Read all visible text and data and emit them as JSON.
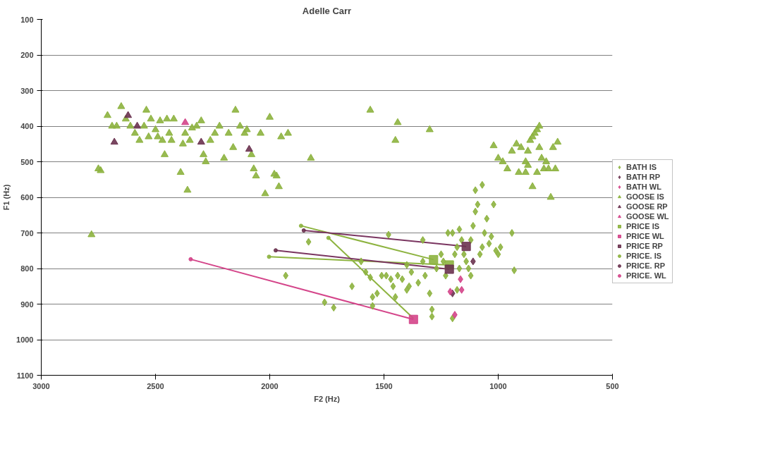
{
  "chart_data": {
    "type": "scatter",
    "title": "Adelle Carr",
    "xlabel": "F2 (Hz)",
    "ylabel": "F1 (Hz)",
    "xlim": [
      3000,
      500
    ],
    "xticks": [
      3000,
      2500,
      2000,
      1500,
      1000,
      500
    ],
    "ylim": [
      1100,
      100
    ],
    "yticks": [
      100,
      200,
      300,
      400,
      500,
      600,
      700,
      800,
      900,
      1000,
      1100
    ],
    "grid": "y",
    "legend": "right",
    "series": [
      {
        "type": "line",
        "color": "#8db33f",
        "x": [
          1371,
          1743
        ],
        "values": [
          940,
          714
        ]
      },
      {
        "type": "line",
        "color": "#8db33f",
        "x": [
          1214,
          2003
        ],
        "values": [
          790,
          767
        ]
      },
      {
        "type": "line",
        "color": "#8db33f",
        "x": [
          1283,
          1863
        ],
        "values": [
          775,
          680
        ]
      },
      {
        "type": "line",
        "color": "#7a3560",
        "x": [
          1140,
          1851
        ],
        "values": [
          738,
          693
        ]
      },
      {
        "type": "line",
        "color": "#7a3560",
        "x": [
          1214,
          1974
        ],
        "values": [
          802,
          749
        ]
      },
      {
        "type": "line",
        "color": "#d4458a",
        "x": [
          1371,
          2346
        ],
        "values": [
          943,
          774
        ]
      },
      {
        "name": "BATH IS",
        "color": "#8db33f",
        "marker": "diamond",
        "x": [
          1930,
          1830,
          1720,
          1760,
          1640,
          1600,
          1580,
          1560,
          1550,
          1530,
          1510,
          1490,
          1470,
          1460,
          1450,
          1440,
          1420,
          1400,
          1390,
          1380,
          1350,
          1330,
          1320,
          1300,
          1290,
          1290,
          1270,
          1250,
          1240,
          1230,
          1220,
          1200,
          1200,
          1190,
          1180,
          1170,
          1160,
          1150,
          1140,
          1130,
          1120,
          1110,
          1100,
          1090,
          1080,
          1070,
          1060,
          1050,
          1040,
          1030,
          1020,
          1010,
          1000,
          990,
          940,
          930,
          1070,
          1100,
          1480,
          1330,
          1550,
          1400,
          1170,
          1120,
          1180
        ],
        "values": [
          820,
          725,
          910,
          895,
          850,
          780,
          810,
          825,
          880,
          870,
          820,
          820,
          830,
          850,
          880,
          820,
          830,
          790,
          850,
          810,
          840,
          780,
          820,
          870,
          915,
          935,
          800,
          760,
          780,
          820,
          700,
          700,
          940,
          760,
          740,
          800,
          720,
          760,
          780,
          800,
          720,
          680,
          640,
          620,
          760,
          740,
          700,
          660,
          730,
          710,
          620,
          750,
          760,
          740,
          700,
          805,
          565,
          580,
          705,
          720,
          905,
          860,
          690,
          820,
          860
        ]
      },
      {
        "name": "BATH RP",
        "color": "#6b3350",
        "marker": "diamond",
        "x": [
          1110,
          1200
        ],
        "values": [
          780,
          870
        ]
      },
      {
        "name": "BATH WL",
        "color": "#d4458a",
        "marker": "diamond",
        "x": [
          1190,
          1210,
          1160,
          1165
        ],
        "values": [
          930,
          865,
          860,
          830
        ]
      },
      {
        "name": "GOOSE IS",
        "color": "#8db33f",
        "marker": "triangle",
        "x": [
          2780,
          2750,
          2740,
          2710,
          2690,
          2670,
          2650,
          2630,
          2610,
          2590,
          2570,
          2550,
          2540,
          2530,
          2520,
          2500,
          2490,
          2480,
          2470,
          2460,
          2450,
          2440,
          2430,
          2420,
          2390,
          2380,
          2370,
          2360,
          2350,
          2340,
          2320,
          2300,
          2290,
          2280,
          2260,
          2240,
          2220,
          2200,
          2180,
          2160,
          2150,
          2130,
          2110,
          2100,
          2080,
          2070,
          2060,
          2040,
          2020,
          2000,
          1980,
          1970,
          1960,
          1950,
          1920,
          1820,
          1560,
          1440,
          1450,
          1300,
          1020,
          1000,
          980,
          960,
          940,
          920,
          910,
          900,
          880,
          870,
          860,
          850,
          840,
          830,
          820,
          810,
          800,
          790,
          850,
          830,
          870,
          780,
          770,
          760,
          740,
          750,
          880,
          820
        ],
        "values": [
          705,
          520,
          525,
          370,
          400,
          400,
          345,
          380,
          400,
          420,
          440,
          400,
          355,
          430,
          380,
          410,
          430,
          385,
          440,
          480,
          380,
          420,
          440,
          380,
          530,
          450,
          420,
          580,
          440,
          405,
          400,
          385,
          480,
          500,
          440,
          420,
          400,
          490,
          420,
          460,
          355,
          400,
          420,
          410,
          480,
          520,
          540,
          420,
          590,
          375,
          535,
          540,
          570,
          430,
          420,
          490,
          355,
          390,
          440,
          410,
          455,
          490,
          500,
          520,
          470,
          450,
          530,
          460,
          530,
          470,
          440,
          430,
          420,
          410,
          460,
          490,
          520,
          500,
          570,
          530,
          510,
          520,
          600,
          460,
          445,
          520,
          500,
          400
        ]
      },
      {
        "name": "GOOSE RP",
        "color": "#6b3350",
        "marker": "triangle",
        "x": [
          2620,
          2580,
          2680,
          2300,
          2090
        ],
        "values": [
          370,
          400,
          445,
          445,
          465
        ]
      },
      {
        "name": "GOOSE WL",
        "color": "#d4458a",
        "marker": "triangle",
        "x": [
          2370
        ],
        "values": [
          390
        ]
      },
      {
        "name": "PRICE IS",
        "color": "#8db33f",
        "marker": "square",
        "x": [
          1214,
          1283
        ],
        "values": [
          790,
          775
        ]
      },
      {
        "name": "PRICE WL",
        "color": "#d4458a",
        "marker": "square",
        "x": [
          1371
        ],
        "values": [
          943
        ]
      },
      {
        "name": "PRICE RP",
        "color": "#6b3350",
        "marker": "square",
        "x": [
          1140,
          1214
        ],
        "values": [
          738,
          802
        ]
      },
      {
        "name": "PRICE. IS",
        "color": "#8db33f",
        "marker": "circle",
        "x": [
          1743,
          2003,
          1863
        ],
        "values": [
          714,
          767,
          680
        ]
      },
      {
        "name": "PRICE. RP",
        "color": "#6b3350",
        "marker": "circle",
        "x": [
          1851,
          1974
        ],
        "values": [
          693,
          749
        ]
      },
      {
        "name": "PRICE. WL",
        "color": "#d4458a",
        "marker": "circle",
        "x": [
          2346
        ],
        "values": [
          774
        ]
      }
    ]
  }
}
